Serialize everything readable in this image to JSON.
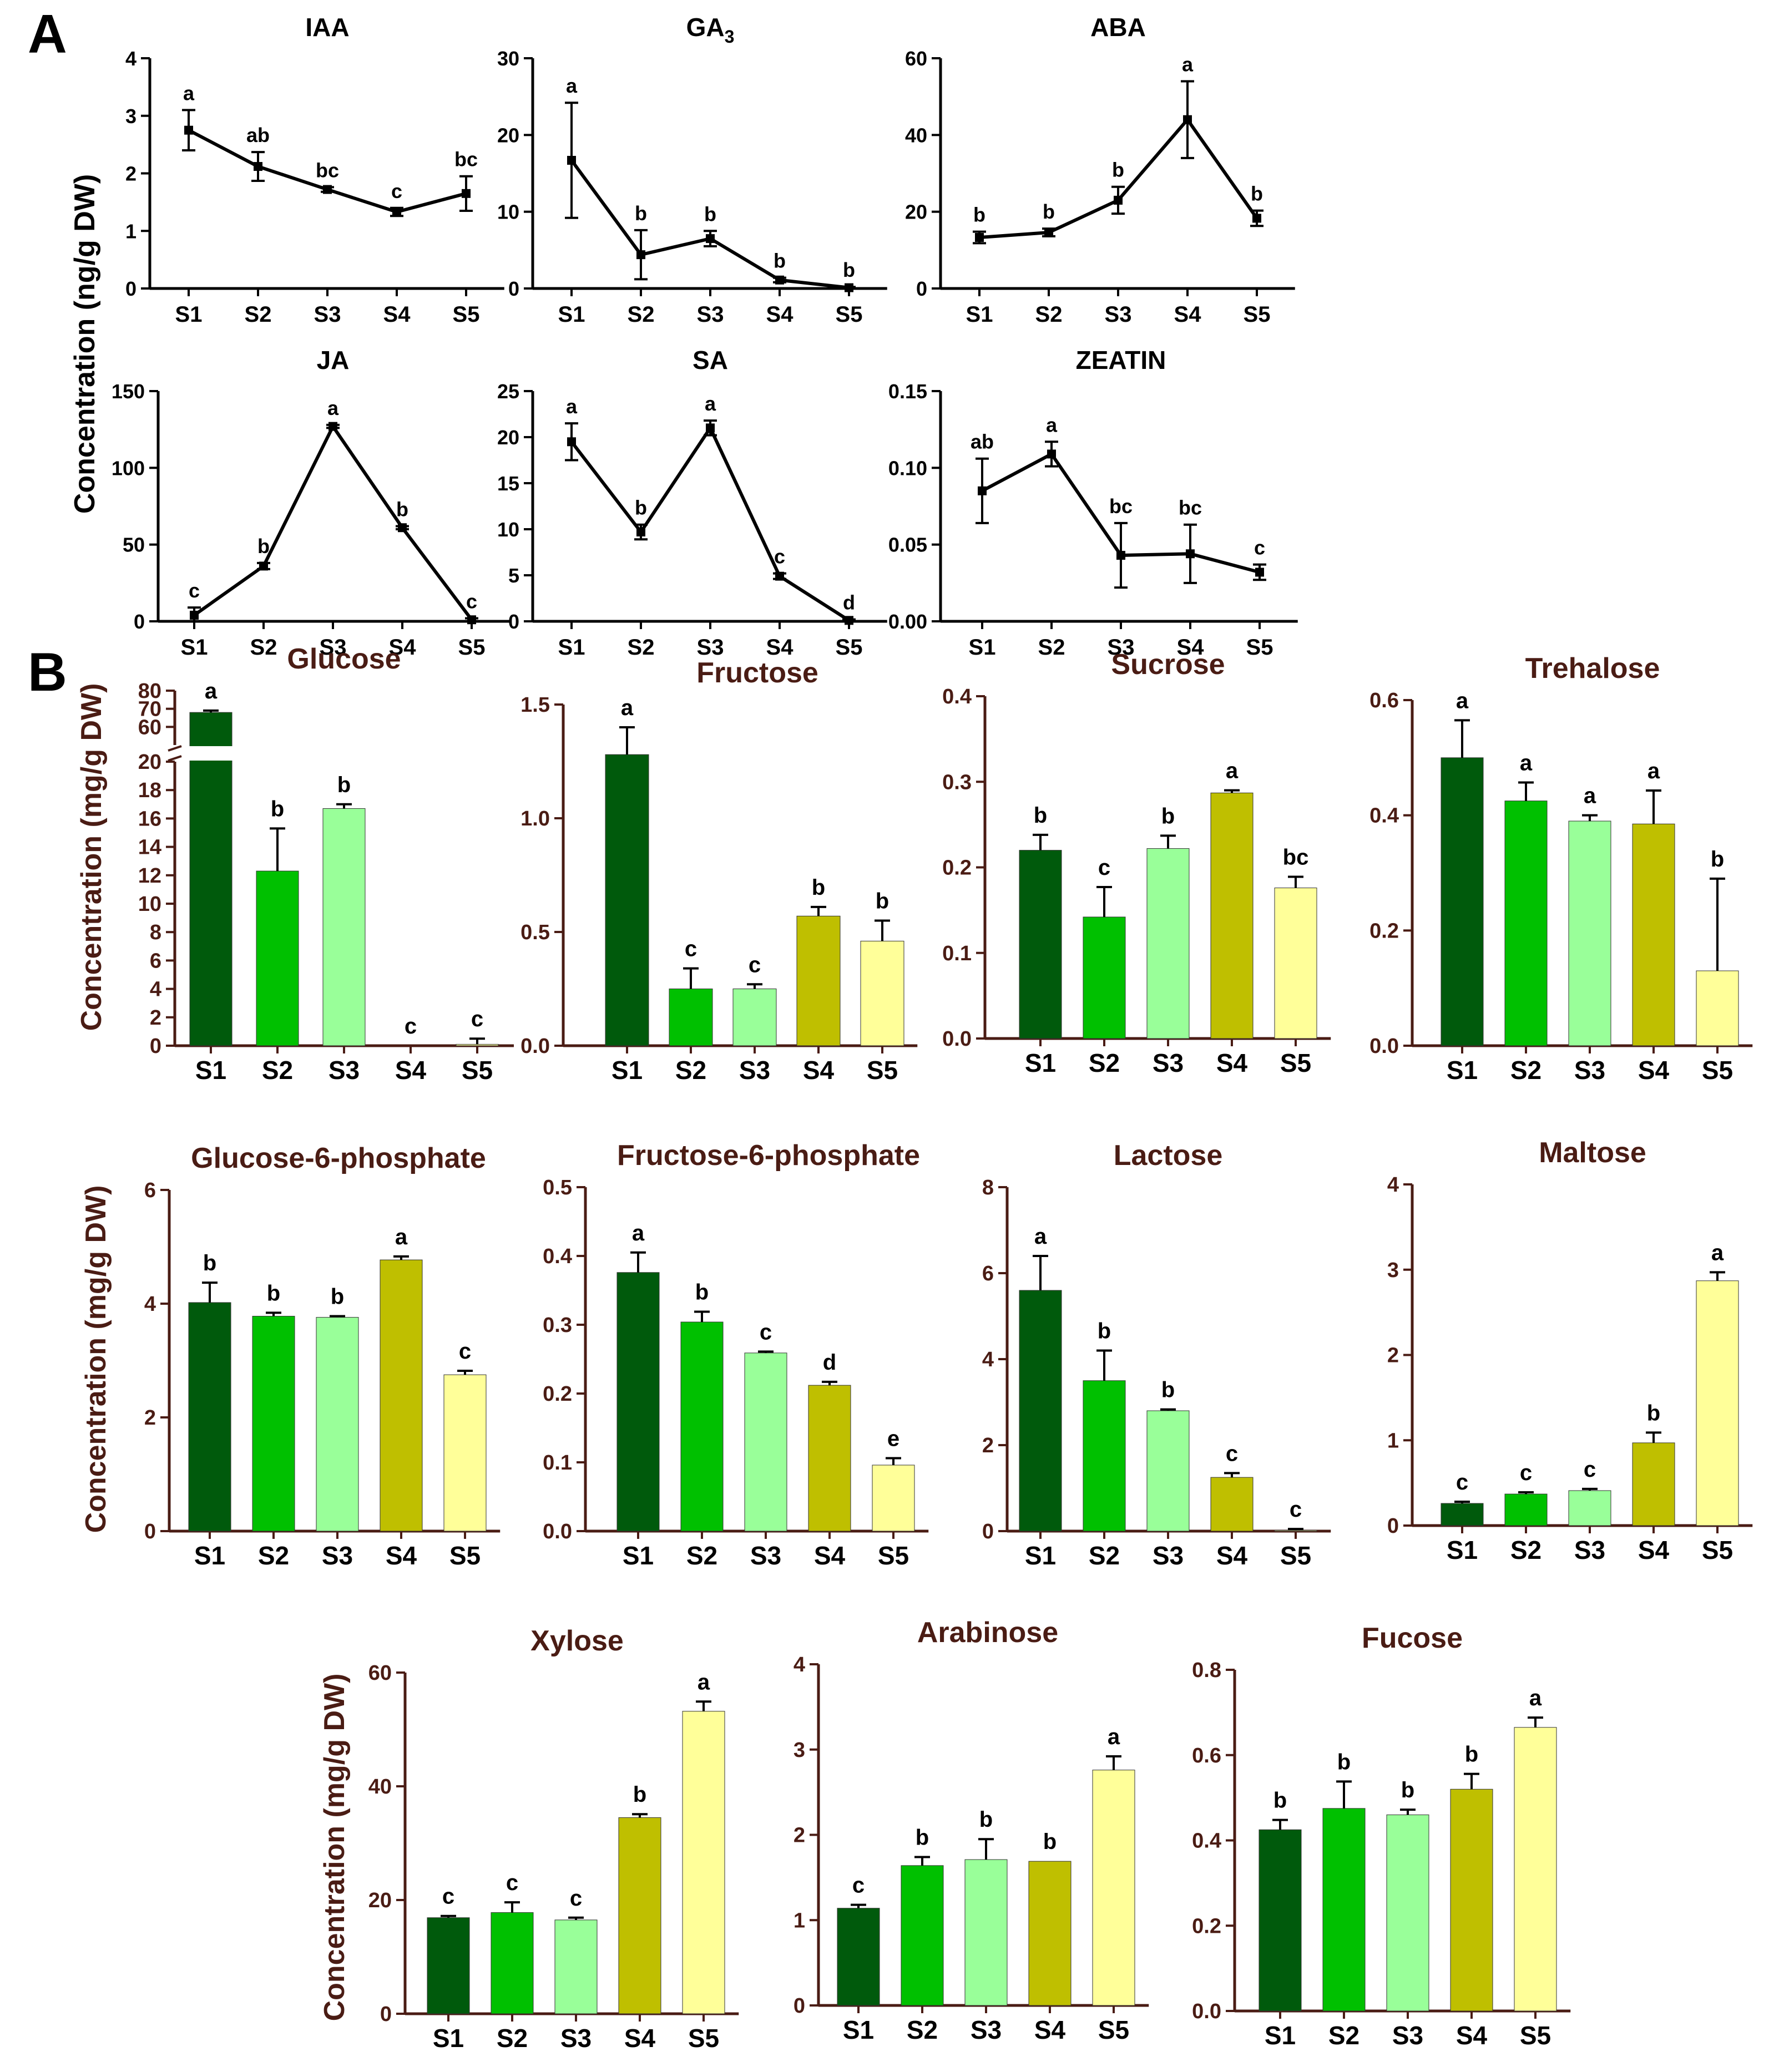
{
  "figure": {
    "panel_a_letter": "A",
    "panel_b_letter": "B",
    "ylabel_a": "Concentration (ng/g DW)",
    "ylabel_b": "Concentration (mg/g DW)"
  },
  "colors": {
    "axis_a": "#000000",
    "axis_b": "#4a1c14",
    "bars": [
      "#005a0c",
      "#00c000",
      "#99ff99",
      "#bfbf00",
      "#ffff99"
    ]
  },
  "chart_data": [
    {
      "id": "iaa",
      "panel": "A",
      "type": "line",
      "title": "IAA",
      "title_sub": "",
      "categories": [
        "S1",
        "S2",
        "S3",
        "S4",
        "S5"
      ],
      "values": [
        2.75,
        2.12,
        1.72,
        1.33,
        1.65
      ],
      "errors": [
        0.35,
        0.25,
        0.04,
        0.07,
        0.3
      ],
      "letters": [
        "a",
        "ab",
        "bc",
        "c",
        "bc"
      ],
      "ylim": [
        0,
        4
      ],
      "yticks": [
        0,
        1,
        2,
        3,
        4
      ],
      "tick_labels": [
        "0",
        "1",
        "2",
        "3",
        "4"
      ]
    },
    {
      "id": "ga3",
      "panel": "A",
      "type": "line",
      "title": "GA",
      "title_sub": "3",
      "categories": [
        "S1",
        "S2",
        "S3",
        "S4",
        "S5"
      ],
      "values": [
        16.7,
        4.4,
        6.5,
        1.1,
        0.1
      ],
      "errors": [
        7.5,
        3.2,
        1.0,
        0.3,
        0.1
      ],
      "letters": [
        "a",
        "b",
        "b",
        "b",
        "b"
      ],
      "ylim": [
        0,
        30
      ],
      "yticks": [
        0,
        10,
        20,
        30
      ],
      "tick_labels": [
        "0",
        "10",
        "20",
        "30"
      ]
    },
    {
      "id": "aba",
      "panel": "A",
      "type": "line",
      "title": "ABA",
      "title_sub": "",
      "categories": [
        "S1",
        "S2",
        "S3",
        "S4",
        "S5"
      ],
      "values": [
        13.3,
        14.6,
        23.0,
        44.0,
        18.3
      ],
      "errors": [
        1.5,
        1.0,
        3.5,
        10.0,
        2.0
      ],
      "letters": [
        "b",
        "b",
        "b",
        "a",
        "b"
      ],
      "ylim": [
        0,
        60
      ],
      "yticks": [
        0,
        20,
        40,
        60
      ],
      "tick_labels": [
        "0",
        "20",
        "40",
        "60"
      ]
    },
    {
      "id": "ja",
      "panel": "A",
      "type": "line",
      "title": "JA",
      "title_sub": "",
      "categories": [
        "S1",
        "S2",
        "S3",
        "S4",
        "S5"
      ],
      "values": [
        4,
        36,
        127,
        61,
        1
      ],
      "errors": [
        5,
        2,
        1,
        1,
        1
      ],
      "letters": [
        "c",
        "b",
        "a",
        "b",
        "c"
      ],
      "ylim": [
        0,
        150
      ],
      "yticks": [
        0,
        50,
        100,
        150
      ],
      "tick_labels": [
        "0",
        "50",
        "100",
        "150"
      ]
    },
    {
      "id": "sa",
      "panel": "A",
      "type": "line",
      "title": "SA",
      "title_sub": "",
      "categories": [
        "S1",
        "S2",
        "S3",
        "S4",
        "S5"
      ],
      "values": [
        19.5,
        9.7,
        21.0,
        4.9,
        0.1
      ],
      "errors": [
        2.0,
        0.8,
        0.8,
        0.3,
        0.1
      ],
      "letters": [
        "a",
        "b",
        "a",
        "c",
        "d"
      ],
      "ylim": [
        0,
        25
      ],
      "yticks": [
        0,
        5,
        10,
        15,
        20,
        25
      ],
      "tick_labels": [
        "0",
        "5",
        "10",
        "15",
        "20",
        "25"
      ]
    },
    {
      "id": "zeatin",
      "panel": "A",
      "type": "line",
      "title": "ZEATIN",
      "title_sub": "",
      "categories": [
        "S1",
        "S2",
        "S3",
        "S4",
        "S5"
      ],
      "values": [
        0.085,
        0.109,
        0.043,
        0.044,
        0.032
      ],
      "errors": [
        0.021,
        0.008,
        0.021,
        0.019,
        0.005
      ],
      "letters": [
        "ab",
        "a",
        "bc",
        "bc",
        "c"
      ],
      "ylim": [
        0,
        0.15
      ],
      "yticks": [
        0,
        0.05,
        0.1,
        0.15
      ],
      "tick_labels": [
        "0.00",
        "0.05",
        "0.10",
        "0.15"
      ]
    },
    {
      "id": "glucose",
      "panel": "B",
      "type": "bar",
      "broken": true,
      "title": "Glucose",
      "title_sub": "",
      "categories": [
        "S1",
        "S2",
        "S3",
        "S4",
        "S5"
      ],
      "values": [
        68.0,
        12.3,
        16.7,
        0.0,
        0.1
      ],
      "errors": [
        1.0,
        3.0,
        0.3,
        0.0,
        0.4
      ],
      "letters": [
        "a",
        "b",
        "b",
        "c",
        "c"
      ],
      "ylim": [
        0,
        80
      ],
      "break": [
        20,
        50
      ],
      "yticks": [
        0,
        2,
        4,
        6,
        8,
        10,
        12,
        14,
        16,
        18,
        20,
        60,
        70,
        80
      ],
      "tick_labels": [
        "0",
        "2",
        "4",
        "6",
        "8",
        "10",
        "12",
        "14",
        "16",
        "18",
        "20",
        "60",
        "70",
        "80"
      ]
    },
    {
      "id": "fructose",
      "panel": "B",
      "type": "bar",
      "title": "Fructose",
      "title_sub": "",
      "categories": [
        "S1",
        "S2",
        "S3",
        "S4",
        "S5"
      ],
      "values": [
        1.28,
        0.25,
        0.25,
        0.57,
        0.46
      ],
      "errors": [
        0.12,
        0.09,
        0.02,
        0.04,
        0.09
      ],
      "letters": [
        "a",
        "c",
        "c",
        "b",
        "b"
      ],
      "ylim": [
        0,
        1.5
      ],
      "yticks": [
        0,
        0.5,
        1.0,
        1.5
      ],
      "tick_labels": [
        "0.0",
        "0.5",
        "1.0",
        "1.5"
      ]
    },
    {
      "id": "sucrose",
      "panel": "B",
      "type": "bar",
      "title": "Sucrose",
      "title_sub": "",
      "categories": [
        "S1",
        "S2",
        "S3",
        "S4",
        "S5"
      ],
      "values": [
        0.22,
        0.142,
        0.222,
        0.287,
        0.176
      ],
      "errors": [
        0.018,
        0.035,
        0.015,
        0.003,
        0.013
      ],
      "letters": [
        "b",
        "c",
        "b",
        "a",
        "bc"
      ],
      "ylim": [
        0,
        0.4
      ],
      "yticks": [
        0,
        0.1,
        0.2,
        0.3,
        0.4
      ],
      "tick_labels": [
        "0.0",
        "0.1",
        "0.2",
        "0.3",
        "0.4"
      ]
    },
    {
      "id": "trehalose",
      "panel": "B",
      "type": "bar",
      "title": "Trehalose",
      "title_sub": "",
      "categories": [
        "S1",
        "S2",
        "S3",
        "S4",
        "S5"
      ],
      "values": [
        0.5,
        0.425,
        0.39,
        0.385,
        0.13
      ],
      "errors": [
        0.065,
        0.032,
        0.01,
        0.058,
        0.16
      ],
      "letters": [
        "a",
        "a",
        "a",
        "a",
        "b"
      ],
      "ylim": [
        0,
        0.6
      ],
      "yticks": [
        0,
        0.2,
        0.4,
        0.6
      ],
      "tick_labels": [
        "0.0",
        "0.2",
        "0.4",
        "0.6"
      ]
    },
    {
      "id": "g6p",
      "panel": "B",
      "type": "bar",
      "title": "Glucose-6-phosphate",
      "title_sub": "",
      "categories": [
        "S1",
        "S2",
        "S3",
        "S4",
        "S5"
      ],
      "values": [
        4.02,
        3.78,
        3.76,
        4.77,
        2.75
      ],
      "errors": [
        0.35,
        0.06,
        0.02,
        0.06,
        0.07
      ],
      "letters": [
        "b",
        "b",
        "b",
        "a",
        "c"
      ],
      "ylim": [
        0,
        6
      ],
      "yticks": [
        0,
        2,
        4,
        6
      ],
      "tick_labels": [
        "0",
        "2",
        "4",
        "6"
      ]
    },
    {
      "id": "f6p",
      "panel": "B",
      "type": "bar",
      "title": "Fructose-6-phosphate",
      "title_sub": "",
      "categories": [
        "S1",
        "S2",
        "S3",
        "S4",
        "S5"
      ],
      "values": [
        0.376,
        0.304,
        0.259,
        0.212,
        0.096
      ],
      "errors": [
        0.029,
        0.015,
        0.002,
        0.005,
        0.01
      ],
      "letters": [
        "a",
        "b",
        "c",
        "d",
        "e"
      ],
      "ylim": [
        0,
        0.5
      ],
      "yticks": [
        0,
        0.1,
        0.2,
        0.3,
        0.4,
        0.5
      ],
      "tick_labels": [
        "0.0",
        "0.1",
        "0.2",
        "0.3",
        "0.4",
        "0.5"
      ]
    },
    {
      "id": "lactose",
      "panel": "B",
      "type": "bar",
      "title": "Lactose",
      "title_sub": "",
      "categories": [
        "S1",
        "S2",
        "S3",
        "S4",
        "S5"
      ],
      "values": [
        5.6,
        3.5,
        2.8,
        1.25,
        0.02
      ],
      "errors": [
        0.8,
        0.7,
        0.03,
        0.1,
        0.03
      ],
      "letters": [
        "a",
        "b",
        "b",
        "c",
        "c"
      ],
      "ylim": [
        0,
        8
      ],
      "yticks": [
        0,
        2,
        4,
        6,
        8
      ],
      "tick_labels": [
        "0",
        "2",
        "4",
        "6",
        "8"
      ]
    },
    {
      "id": "maltose",
      "panel": "B",
      "type": "bar",
      "title": "Maltose",
      "title_sub": "",
      "categories": [
        "S1",
        "S2",
        "S3",
        "S4",
        "S5"
      ],
      "values": [
        0.26,
        0.37,
        0.41,
        0.97,
        2.87
      ],
      "errors": [
        0.02,
        0.02,
        0.02,
        0.12,
        0.1
      ],
      "letters": [
        "c",
        "c",
        "c",
        "b",
        "a"
      ],
      "ylim": [
        0,
        4
      ],
      "yticks": [
        0,
        1,
        2,
        3,
        4
      ],
      "tick_labels": [
        "0",
        "1",
        "2",
        "3",
        "4"
      ]
    },
    {
      "id": "xylose",
      "panel": "B",
      "type": "bar",
      "title": "Xylose",
      "title_sub": "",
      "categories": [
        "S1",
        "S2",
        "S3",
        "S4",
        "S5"
      ],
      "values": [
        16.9,
        17.8,
        16.5,
        34.5,
        53.2
      ],
      "errors": [
        0.3,
        1.8,
        0.4,
        0.6,
        1.7
      ],
      "letters": [
        "c",
        "c",
        "c",
        "b",
        "a"
      ],
      "ylim": [
        0,
        60
      ],
      "yticks": [
        0,
        20,
        40,
        60
      ],
      "tick_labels": [
        "0",
        "20",
        "40",
        "60"
      ]
    },
    {
      "id": "arabinose",
      "panel": "B",
      "type": "bar",
      "title": "Arabinose",
      "title_sub": "",
      "categories": [
        "S1",
        "S2",
        "S3",
        "S4",
        "S5"
      ],
      "values": [
        1.14,
        1.64,
        1.71,
        1.69,
        2.76
      ],
      "errors": [
        0.04,
        0.1,
        0.24,
        0.0,
        0.16
      ],
      "letters": [
        "c",
        "b",
        "b",
        "b",
        "a"
      ],
      "ylim": [
        0,
        4
      ],
      "yticks": [
        0,
        1,
        2,
        3,
        4
      ],
      "tick_labels": [
        "0",
        "1",
        "2",
        "3",
        "4"
      ]
    },
    {
      "id": "fucose",
      "panel": "B",
      "type": "bar",
      "title": "Fucose",
      "title_sub": "",
      "categories": [
        "S1",
        "S2",
        "S3",
        "S4",
        "S5"
      ],
      "values": [
        0.425,
        0.475,
        0.46,
        0.52,
        0.665
      ],
      "errors": [
        0.023,
        0.063,
        0.012,
        0.036,
        0.023
      ],
      "letters": [
        "b",
        "b",
        "b",
        "b",
        "a"
      ],
      "ylim": [
        0,
        0.8
      ],
      "yticks": [
        0,
        0.2,
        0.4,
        0.6,
        0.8
      ],
      "tick_labels": [
        "0.0",
        "0.2",
        "0.4",
        "0.6",
        "0.8"
      ]
    }
  ]
}
